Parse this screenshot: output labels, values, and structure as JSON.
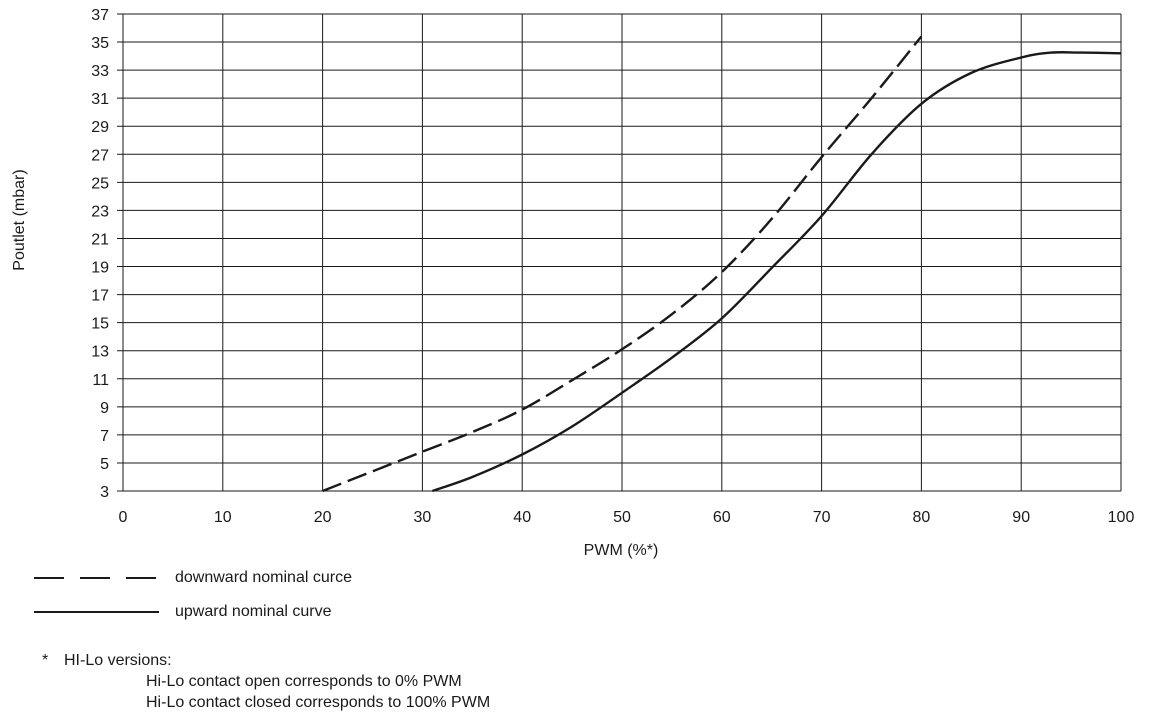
{
  "chart_data": {
    "type": "line",
    "xlabel": "PWM (%*)",
    "ylabel": "Poutlet (mbar)",
    "xlim": [
      0,
      100
    ],
    "ylim": [
      3,
      37
    ],
    "xticks": [
      0,
      10,
      20,
      30,
      40,
      50,
      60,
      70,
      80,
      90,
      100
    ],
    "yticks": [
      3,
      5,
      7,
      9,
      11,
      13,
      15,
      17,
      19,
      21,
      23,
      25,
      27,
      29,
      31,
      33,
      35,
      37
    ],
    "grid": true,
    "series": [
      {
        "name": "downward nominal curce",
        "style": "dashed",
        "points": [
          [
            20,
            3
          ],
          [
            25,
            4.4
          ],
          [
            30,
            5.8
          ],
          [
            35,
            7.2
          ],
          [
            40,
            8.8
          ],
          [
            45,
            10.9
          ],
          [
            50,
            13.1
          ],
          [
            55,
            15.6
          ],
          [
            60,
            18.6
          ],
          [
            65,
            22.4
          ],
          [
            70,
            26.8
          ],
          [
            75,
            31
          ],
          [
            80,
            35.4
          ]
        ]
      },
      {
        "name": "upward nominal curve",
        "style": "solid",
        "points": [
          [
            31,
            3
          ],
          [
            35,
            4
          ],
          [
            40,
            5.6
          ],
          [
            45,
            7.6
          ],
          [
            50,
            10
          ],
          [
            55,
            12.5
          ],
          [
            60,
            15.3
          ],
          [
            65,
            18.9
          ],
          [
            70,
            22.6
          ],
          [
            75,
            27
          ],
          [
            80,
            30.6
          ],
          [
            85,
            32.8
          ],
          [
            90,
            33.9
          ],
          [
            93,
            34.25
          ],
          [
            96,
            34.25
          ],
          [
            100,
            34.2
          ]
        ]
      }
    ]
  },
  "legend": {
    "downward_label": "downward nominal curce",
    "upward_label": "upward nominal curve"
  },
  "footnote": {
    "marker": "*",
    "title": "HI-Lo versions:",
    "line1": "Hi-Lo contact open corresponds to 0% PWM",
    "line2": "Hi-Lo contact closed corresponds to 100% PWM"
  }
}
